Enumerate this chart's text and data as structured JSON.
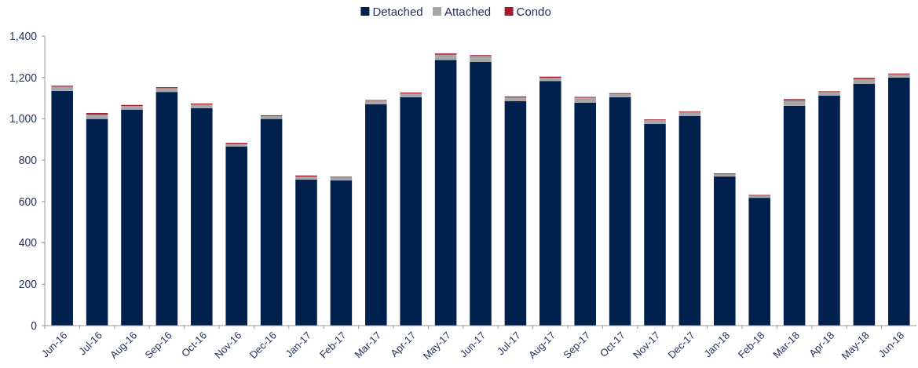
{
  "chart_data": {
    "type": "bar",
    "stacked": true,
    "legend": "top",
    "grid": false,
    "categories": [
      "Jun-16",
      "Jul-16",
      "Aug-16",
      "Sep-16",
      "Oct-16",
      "Nov-16",
      "Dec-16",
      "Jan-17",
      "Feb-17",
      "Mar-17",
      "Apr-17",
      "May-17",
      "Jun-17",
      "Jul-17",
      "Aug-17",
      "Sep-17",
      "Oct-17",
      "Nov-17",
      "Dec-17",
      "Jan-18",
      "Feb-18",
      "Mar-18",
      "Apr-18",
      "May-18",
      "Jun-18"
    ],
    "series": [
      {
        "name": "Detached",
        "color": "#00214d",
        "values": [
          1135,
          1000,
          1045,
          1130,
          1052,
          867,
          1000,
          707,
          703,
          1070,
          1105,
          1285,
          1275,
          1085,
          1183,
          1078,
          1105,
          975,
          1013,
          722,
          618,
          1063,
          1112,
          1170,
          1200
        ]
      },
      {
        "name": "Attached",
        "color": "#a6a6a6",
        "values": [
          20,
          20,
          17,
          18,
          17,
          12,
          13,
          14,
          15,
          18,
          18,
          25,
          28,
          18,
          15,
          24,
          15,
          18,
          18,
          10,
          10,
          26,
          17,
          22,
          15
        ]
      },
      {
        "name": "Condo",
        "color": "#a6192e",
        "values": [
          5,
          8,
          5,
          5,
          5,
          5,
          4,
          5,
          3,
          3,
          4,
          6,
          5,
          5,
          6,
          4,
          4,
          4,
          4,
          4,
          4,
          6,
          4,
          6,
          4
        ]
      }
    ],
    "ylim": [
      0,
      1400
    ],
    "yticks": [
      {
        "value": 0,
        "label": "0"
      },
      {
        "value": 200,
        "label": "200"
      },
      {
        "value": 400,
        "label": "400"
      },
      {
        "value": 600,
        "label": "600"
      },
      {
        "value": 800,
        "label": "800"
      },
      {
        "value": 1000,
        "label": "1,000"
      },
      {
        "value": 1200,
        "label": "1,200"
      },
      {
        "value": 1400,
        "label": "1,400"
      }
    ]
  }
}
